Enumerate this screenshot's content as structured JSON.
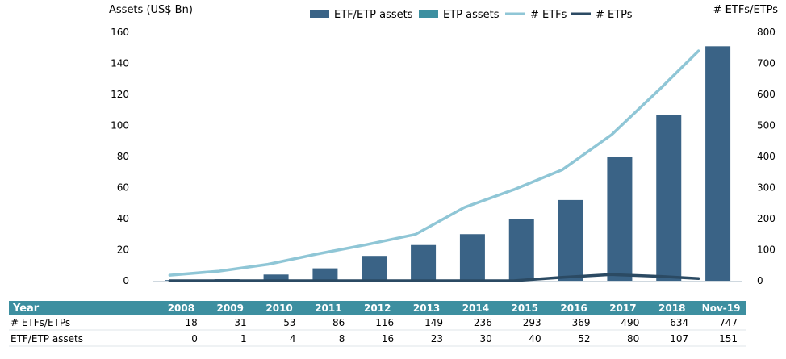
{
  "chart_data": {
    "type": "bar",
    "left_axis_label": "Assets (US$ Bn)",
    "right_axis_label": "# ETFs/ETPs",
    "left_axis": {
      "ylim": [
        0,
        160
      ],
      "ticks": [
        0,
        20,
        40,
        60,
        80,
        100,
        120,
        140,
        160
      ]
    },
    "right_axis": {
      "ylim": [
        0,
        800
      ],
      "ticks": [
        0,
        100,
        200,
        300,
        400,
        500,
        600,
        700,
        800
      ]
    },
    "categories": [
      "2008",
      "2009",
      "2010",
      "2011",
      "2012",
      "2013",
      "2014",
      "2015",
      "2016",
      "2017",
      "2018",
      "Nov-19"
    ],
    "series": [
      {
        "name": "ETF/ETP assets",
        "kind": "bar",
        "axis": "left",
        "color": "#3a6386",
        "values": [
          0,
          1,
          4,
          8,
          16,
          23,
          30,
          40,
          52,
          80,
          107,
          151
        ]
      },
      {
        "name": "ETP assets",
        "kind": "bar",
        "axis": "left",
        "color": "#3d8fa0",
        "values": [
          0,
          0,
          0,
          0,
          0,
          0,
          0,
          0,
          0,
          0,
          0,
          0
        ]
      },
      {
        "name": "# ETFs",
        "kind": "line",
        "axis": "right",
        "color": "#8fc6d6",
        "values": [
          18,
          31,
          53,
          86,
          116,
          149,
          236,
          293,
          358,
          470,
          620,
          740
        ]
      },
      {
        "name": "# ETPs",
        "kind": "line",
        "axis": "right",
        "color": "#2b4a63",
        "values": [
          0,
          0,
          0,
          0,
          0,
          0,
          0,
          0,
          11,
          20,
          14,
          7
        ]
      }
    ],
    "legend_position": "top",
    "table": {
      "header": {
        "label": "Year",
        "values": [
          "2008",
          "2009",
          "2010",
          "2011",
          "2012",
          "2013",
          "2014",
          "2015",
          "2016",
          "2017",
          "2018",
          "Nov-19"
        ]
      },
      "rows": [
        {
          "label": "# ETFs/ETPs",
          "values": [
            "18",
            "31",
            "53",
            "86",
            "116",
            "149",
            "236",
            "293",
            "369",
            "490",
            "634",
            "747"
          ]
        },
        {
          "label": "ETF/ETP assets",
          "values": [
            "0",
            "1",
            "4",
            "8",
            "16",
            "23",
            "30",
            "40",
            "52",
            "80",
            "107",
            "151"
          ]
        }
      ]
    },
    "colors": {
      "table_header": "#3d8fa0",
      "table_header_text": "#ffffff",
      "axis_text": "#000000"
    }
  }
}
